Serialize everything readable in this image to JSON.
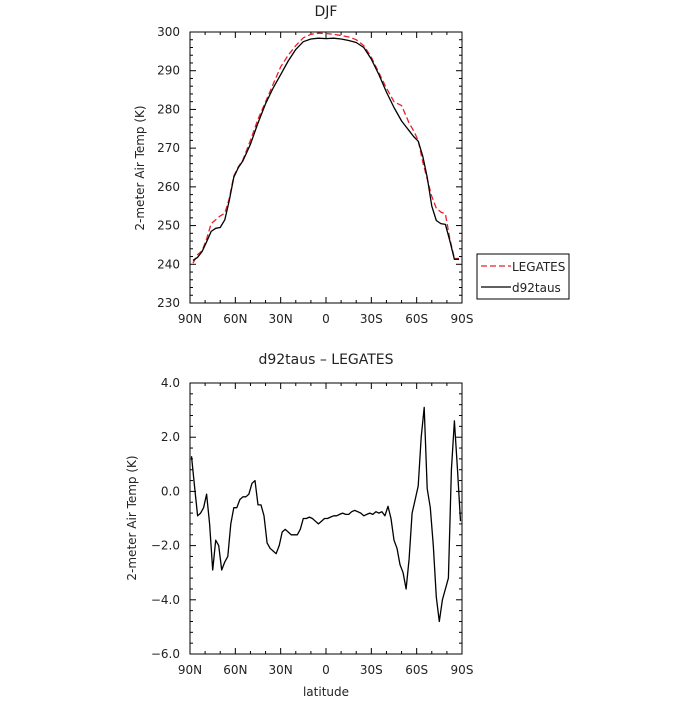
{
  "chart_data": [
    {
      "type": "line",
      "title": "DJF",
      "xlabel": "",
      "ylabel": "2-meter Air Temp (K)",
      "xlim": [
        -90,
        90
      ],
      "ylim": [
        230,
        300
      ],
      "xticks": [
        -90,
        -60,
        -30,
        0,
        30,
        60,
        90
      ],
      "xtick_labels": [
        "90N",
        "60N",
        "30N",
        "0",
        "30S",
        "60S",
        "90S"
      ],
      "yticks": [
        230,
        240,
        250,
        260,
        270,
        280,
        290,
        300
      ],
      "ytick_labels": [
        "230",
        "240",
        "250",
        "260",
        "270",
        "280",
        "290",
        "300"
      ],
      "legend_position": "right",
      "series": [
        {
          "name": "LEGATES",
          "color": "#e8202a",
          "dash": "dashed",
          "x": [
            -88,
            -85,
            -82,
            -79,
            -76,
            -73,
            -70,
            -67,
            -64,
            -61,
            -58,
            -55,
            -50,
            -45,
            -40,
            -35,
            -30,
            -25,
            -20,
            -15,
            -10,
            -5,
            0,
            5,
            10,
            15,
            20,
            25,
            30,
            35,
            40,
            45,
            50,
            55,
            58,
            61,
            64,
            67,
            70,
            73,
            76,
            79,
            82,
            85,
            88
          ],
          "y": [
            240.3,
            242.5,
            243.5,
            246.5,
            250.5,
            251.5,
            252.5,
            253.2,
            257.0,
            262.8,
            265.2,
            267.0,
            272.0,
            277.5,
            282.0,
            286.5,
            291.0,
            294.0,
            296.5,
            298.5,
            299.4,
            299.7,
            299.6,
            299.4,
            299.1,
            298.7,
            298.0,
            296.5,
            293.5,
            289.5,
            285.5,
            282.0,
            281.0,
            276.5,
            274.5,
            272.0,
            266.5,
            262.0,
            257.5,
            254.5,
            253.5,
            253.0,
            246.5,
            241.5,
            241.5
          ]
        },
        {
          "name": "d92taus",
          "color": "#000000",
          "dash": "solid",
          "x": [
            -88,
            -85,
            -82,
            -79,
            -76,
            -73,
            -70,
            -67,
            -64,
            -61,
            -58,
            -55,
            -50,
            -45,
            -40,
            -35,
            -30,
            -25,
            -20,
            -15,
            -10,
            -5,
            0,
            5,
            10,
            15,
            20,
            25,
            30,
            35,
            40,
            45,
            50,
            55,
            58,
            61,
            64,
            67,
            70,
            73,
            76,
            79,
            82,
            85,
            88
          ],
          "y": [
            241.0,
            241.8,
            243.3,
            245.8,
            248.5,
            249.3,
            249.5,
            251.5,
            256.5,
            262.5,
            265.0,
            266.7,
            271.0,
            276.5,
            281.5,
            285.5,
            289.0,
            292.5,
            295.5,
            297.5,
            298.2,
            298.4,
            298.3,
            298.4,
            298.2,
            297.8,
            297.3,
            296.0,
            293.0,
            289.0,
            284.5,
            280.5,
            277.0,
            274.5,
            273.0,
            271.8,
            268.0,
            262.5,
            255.0,
            251.3,
            250.5,
            250.3,
            246.0,
            241.3,
            241.3
          ]
        }
      ]
    },
    {
      "type": "line",
      "title": "d92taus – LEGATES",
      "xlabel": "latitude",
      "ylabel": "2-meter Air Temp (K)",
      "xlim": [
        -90,
        90
      ],
      "ylim": [
        -6.0,
        4.0
      ],
      "xticks": [
        -90,
        -60,
        -30,
        0,
        30,
        60,
        90
      ],
      "xtick_labels": [
        "90N",
        "60N",
        "30N",
        "0",
        "30S",
        "60S",
        "90S"
      ],
      "yticks": [
        -6,
        -4,
        -2,
        0,
        2,
        4
      ],
      "ytick_labels": [
        "−6.0",
        "−4.0",
        "−2.0",
        "0.0",
        "2.0",
        "4.0"
      ],
      "series": [
        {
          "name": "",
          "color": "#000000",
          "dash": "solid",
          "x": [
            -89,
            -87,
            -85,
            -83,
            -81,
            -79,
            -77,
            -75,
            -73,
            -71,
            -69,
            -67,
            -65,
            -63,
            -61,
            -59,
            -57,
            -55,
            -53,
            -51,
            -49,
            -47,
            -45,
            -43,
            -41,
            -39,
            -37,
            -35,
            -33,
            -31,
            -29,
            -27,
            -25,
            -23,
            -21,
            -19,
            -17,
            -15,
            -13,
            -11,
            -9,
            -7,
            -5,
            -3,
            -1,
            1,
            3,
            5,
            7,
            9,
            11,
            13,
            15,
            17,
            19,
            21,
            23,
            25,
            27,
            29,
            31,
            33,
            35,
            37,
            39,
            41,
            43,
            45,
            47,
            49,
            51,
            53,
            55,
            57,
            59,
            61,
            63,
            65,
            67,
            69,
            71,
            73,
            75,
            77,
            79,
            81,
            83,
            85,
            87,
            89
          ],
          "y": [
            1.3,
            0.2,
            -0.9,
            -0.8,
            -0.6,
            -0.1,
            -1.2,
            -2.9,
            -1.8,
            -2.0,
            -2.9,
            -2.6,
            -2.4,
            -1.2,
            -0.6,
            -0.6,
            -0.3,
            -0.2,
            -0.2,
            -0.1,
            0.3,
            0.4,
            -0.5,
            -0.5,
            -0.9,
            -1.9,
            -2.1,
            -2.2,
            -2.3,
            -2.0,
            -1.5,
            -1.4,
            -1.5,
            -1.6,
            -1.6,
            -1.6,
            -1.4,
            -1.0,
            -1.0,
            -0.95,
            -1.0,
            -1.1,
            -1.2,
            -1.1,
            -1.0,
            -1.0,
            -0.95,
            -0.9,
            -0.9,
            -0.85,
            -0.8,
            -0.85,
            -0.85,
            -0.75,
            -0.7,
            -0.75,
            -0.8,
            -0.9,
            -0.85,
            -0.8,
            -0.85,
            -0.75,
            -0.8,
            -0.75,
            -0.9,
            -0.55,
            -1.0,
            -1.8,
            -2.1,
            -2.7,
            -3.0,
            -3.6,
            -2.5,
            -0.8,
            -0.3,
            0.2,
            2.0,
            3.1,
            0.1,
            -0.6,
            -2.0,
            -3.9,
            -4.8,
            -4.0,
            -3.6,
            -3.2,
            0.8,
            2.6,
            0.8,
            -1.1
          ]
        }
      ]
    }
  ],
  "legend": {
    "items": [
      {
        "label": "LEGATES",
        "color": "#e8202a",
        "dash": "dashed"
      },
      {
        "label": "d92taus",
        "color": "#000000",
        "dash": "solid"
      }
    ]
  }
}
